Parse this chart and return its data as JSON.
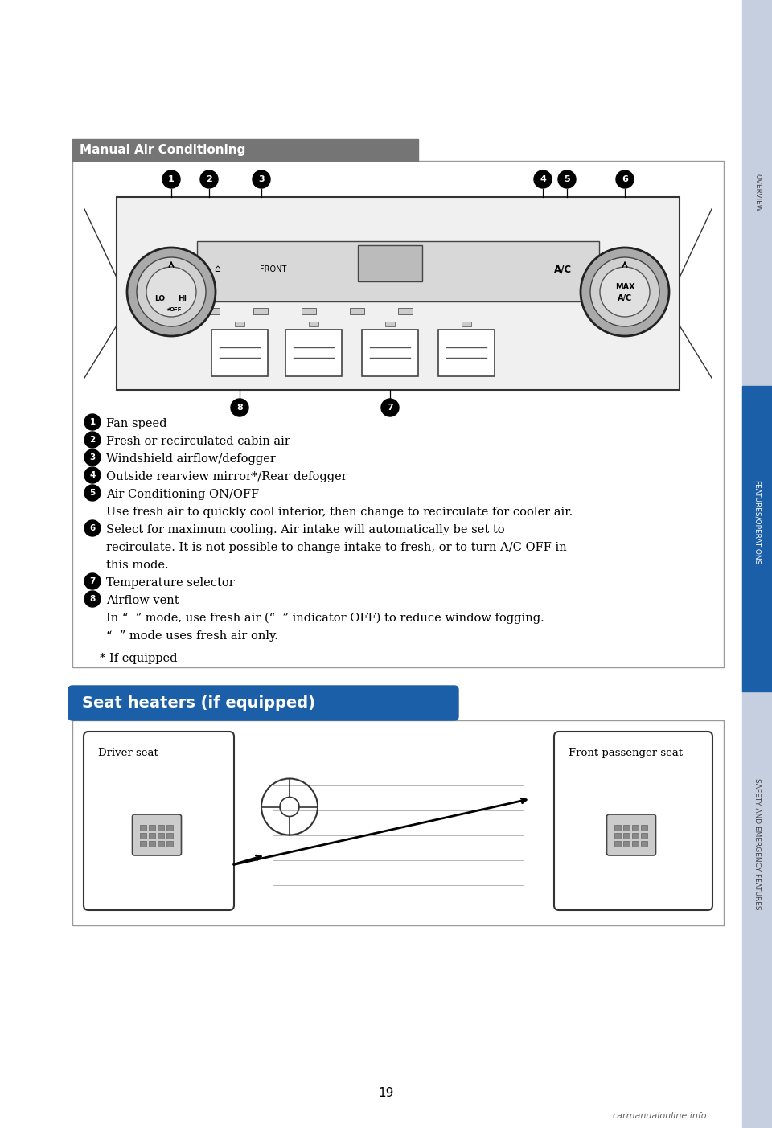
{
  "page_bg": "#ffffff",
  "sidebar_color": "#c5cfe0",
  "sidebar_blue": "#1a5fa8",
  "label_overview": "OVERVIEW",
  "label_features": "FEATURES/OPERATIONS",
  "label_safety": "SAFETY AND EMERGENCY FEATURES",
  "page_number": "19",
  "sec1_title": "Manual Air Conditioning",
  "sec1_title_bg": "#757575",
  "sec1_title_fg": "#ffffff",
  "sec2_title": "Seat heaters (if equipped)",
  "sec2_title_bg": "#1a5fa8",
  "sec2_title_fg": "#ffffff",
  "box_edge": "#999999",
  "item1": "Fan speed",
  "item2": "Fresh or recirculated cabin air",
  "item3": "Windshield airflow/defogger",
  "item4": "Outside rearview mirror*/Rear defogger",
  "item5": "Air Conditioning ON/OFF",
  "item5b": "Use fresh air to quickly cool interior, then change to recirculate for cooler air.",
  "item6a": "Select for maximum cooling. Air intake will automatically be set to",
  "item6b": "recirculate. It is not possible to change intake to fresh, or to turn A/C OFF in",
  "item6c": "this mode.",
  "item7": "Temperature selector",
  "item8": "Airflow vent",
  "item8b": "In “  ” mode, use fresh air (“  ” indicator OFF) to reduce window fogging.",
  "item8c": "“  ” mode uses fresh air only.",
  "footnote": "* If equipped",
  "driver_label": "Driver seat",
  "passenger_label": "Front passenger seat",
  "watermark": "carmanualonline.info"
}
